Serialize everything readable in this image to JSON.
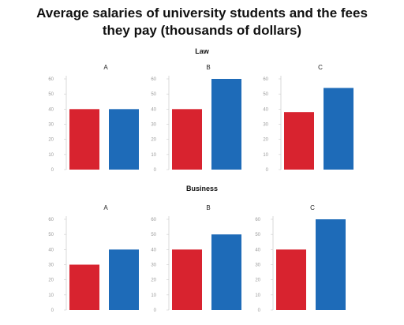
{
  "title": {
    "line1": "Average salaries of university students and the fees",
    "line2": "they pay (thousands of dollars)"
  },
  "sections": [
    {
      "label": "Law"
    },
    {
      "label": "Business"
    }
  ],
  "colors": {
    "red": "#d8232f",
    "blue": "#1e6bb8"
  },
  "chart_data": [
    {
      "type": "bar",
      "section": "Law",
      "title": "A",
      "categories": [
        "",
        ""
      ],
      "values": [
        40,
        40
      ],
      "ylim": [
        0,
        60
      ],
      "yticks": [
        0,
        10,
        20,
        30,
        40,
        50,
        60
      ]
    },
    {
      "type": "bar",
      "section": "Law",
      "title": "B",
      "categories": [
        "",
        ""
      ],
      "values": [
        40,
        60
      ],
      "ylim": [
        0,
        60
      ],
      "yticks": [
        0,
        10,
        20,
        30,
        40,
        50,
        60
      ]
    },
    {
      "type": "bar",
      "section": "Law",
      "title": "C",
      "categories": [
        "",
        ""
      ],
      "values": [
        38,
        54
      ],
      "ylim": [
        0,
        60
      ],
      "yticks": [
        0,
        10,
        20,
        30,
        40,
        50,
        60
      ]
    },
    {
      "type": "bar",
      "section": "Business",
      "title": "A",
      "categories": [
        "",
        ""
      ],
      "values": [
        30,
        40
      ],
      "ylim": [
        0,
        60
      ],
      "yticks": [
        0,
        10,
        20,
        30,
        40,
        50,
        60
      ]
    },
    {
      "type": "bar",
      "section": "Business",
      "title": "B",
      "categories": [
        "",
        ""
      ],
      "values": [
        40,
        50
      ],
      "ylim": [
        0,
        60
      ],
      "yticks": [
        0,
        10,
        20,
        30,
        40,
        50,
        60
      ]
    },
    {
      "type": "bar",
      "section": "Business",
      "title": "C",
      "categories": [
        "",
        ""
      ],
      "values": [
        40,
        60
      ],
      "ylim": [
        0,
        60
      ],
      "yticks": [
        0,
        10,
        20,
        30,
        40,
        50,
        60
      ]
    }
  ]
}
